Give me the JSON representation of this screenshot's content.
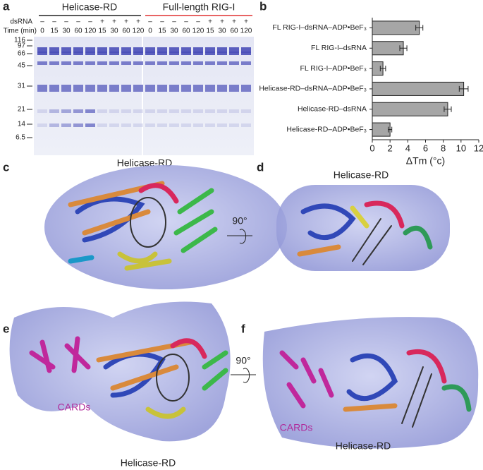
{
  "panels": {
    "a": {
      "label": "a",
      "row_labels": [
        "dsRNA",
        "Time (min)"
      ],
      "groups": [
        {
          "title": "Helicase-RD",
          "dsrna": [
            "–",
            "–",
            "–",
            "–",
            "–",
            "+",
            "+",
            "+",
            "+"
          ],
          "times": [
            0,
            15,
            30,
            60,
            120,
            15,
            30,
            60,
            120
          ]
        },
        {
          "title": "Full-length RIG-I",
          "dsrna": [
            "–",
            "–",
            "–",
            "–",
            "–",
            "+",
            "+",
            "+",
            "+"
          ],
          "times": [
            0,
            15,
            30,
            60,
            120,
            15,
            30,
            60,
            120
          ]
        }
      ],
      "markers": [
        116,
        97,
        66,
        45,
        31,
        21,
        14,
        6.5
      ]
    },
    "b": {
      "label": "b"
    },
    "c": {
      "label": "c",
      "title": "Helicase-RD"
    },
    "d": {
      "label": "d",
      "title": "Helicase-RD",
      "rotation": "90°"
    },
    "e": {
      "label": "e",
      "caption": "CARDs",
      "title": "Helicase-RD",
      "rotation": "90°"
    },
    "f": {
      "label": "f",
      "caption": "CARDs",
      "title": "Helicase-RD"
    }
  },
  "chart_data": {
    "type": "bar",
    "orientation": "horizontal",
    "categories": [
      "FL RIG-I–dsRNA–ADP•BeF₃",
      "FL RIG-I–dsRNA",
      "FL RIG-I–ADP•BeF₃",
      "Helicase-RD–dsRNA–ADP•BeF₃",
      "Helicase-RD–dsRNA",
      "Helicase-RD–ADP•BeF₃"
    ],
    "values": [
      5.3,
      3.5,
      1.2,
      10.3,
      8.5,
      2.0
    ],
    "errors": [
      0.4,
      0.4,
      0.3,
      0.5,
      0.4,
      0.2
    ],
    "color": "#a6a6a6",
    "xlim": [
      0,
      12
    ],
    "xticks": [
      0,
      2,
      4,
      6,
      8,
      10,
      12
    ],
    "x_label": "ΔTm (°c)"
  }
}
